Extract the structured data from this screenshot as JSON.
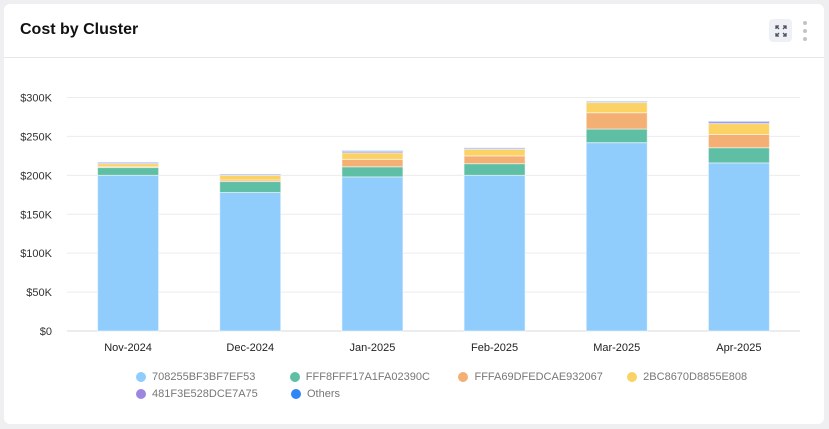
{
  "header": {
    "title": "Cost by Cluster"
  },
  "icons": {
    "expand": "expand-icon",
    "more": "kebab-menu-icon"
  },
  "chart_data": {
    "type": "bar",
    "stacked": true,
    "title": "Cost by Cluster",
    "xlabel": "",
    "ylabel": "",
    "ylim": [
      0,
      300000
    ],
    "yticks": [
      0,
      50000,
      100000,
      150000,
      200000,
      250000,
      300000
    ],
    "ytick_labels": [
      "$0",
      "$50K",
      "$100K",
      "$150K",
      "$200K",
      "$250K",
      "$300K"
    ],
    "grid": true,
    "legend_position": "bottom",
    "categories": [
      "Nov-2024",
      "Dec-2024",
      "Jan-2025",
      "Feb-2025",
      "Mar-2025",
      "Apr-2025"
    ],
    "series": [
      {
        "name": "708255BF3BF7EF53",
        "color": "#90cdfd",
        "values": [
          200000,
          178000,
          198000,
          200000,
          242000,
          216000
        ]
      },
      {
        "name": "FFF8FFF17A1FA02390C",
        "color": "#5fbfa5",
        "values": [
          10000,
          14000,
          13000,
          15000,
          17500,
          19500
        ]
      },
      {
        "name": "FFFA69DFEDCAE932067",
        "color": "#f4b074",
        "values": [
          1000,
          2000,
          9500,
          10000,
          21000,
          17000
        ]
      },
      {
        "name": "2BC8670D8855E808",
        "color": "#fbd264",
        "values": [
          4000,
          6000,
          8500,
          8500,
          13000,
          14000
        ]
      },
      {
        "name": "481F3E528DCE7A75",
        "color": "#9b87e0",
        "values": [
          1500,
          1300,
          1700,
          1500,
          1300,
          2500
        ]
      },
      {
        "name": "Others",
        "color": "#2f86f6",
        "values": [
          300,
          300,
          1000,
          300,
          300,
          500
        ]
      }
    ]
  }
}
